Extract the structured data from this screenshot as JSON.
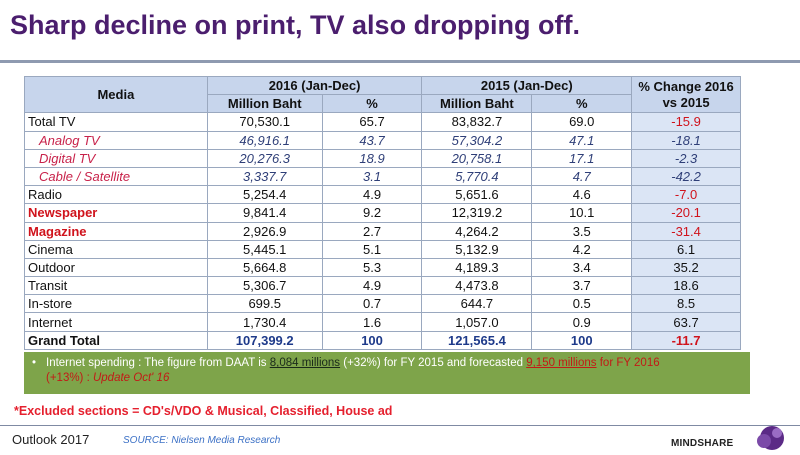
{
  "title": "Sharp decline on print, TV also dropping off.",
  "table": {
    "media_header": "Media",
    "group_2016": "2016 (Jan-Dec)",
    "group_2015": "2015 (Jan-Dec)",
    "change_header": "% Change 2016 vs 2015",
    "sub_million_2016": "Million Baht",
    "sub_pct_2016": "%",
    "sub_million_2015": "Million Baht",
    "sub_pct_2015": "%"
  },
  "chart_data": {
    "type": "table",
    "title": "Sharp decline on print, TV also dropping off.",
    "columns": [
      "Media",
      "2016 (Jan-Dec) Million Baht",
      "2016 (Jan-Dec) %",
      "2015 (Jan-Dec) Million Baht",
      "2015 (Jan-Dec) %",
      "% Change 2016 vs 2015"
    ],
    "rows": [
      {
        "media": "Total TV",
        "m2016": "70,530.1",
        "p2016": "65.7",
        "m2015": "83,832.7",
        "p2015": "69.0",
        "change": "-15.9",
        "style": "normal",
        "change_neg": true
      },
      {
        "media": "Analog TV",
        "m2016": "46,916.1",
        "p2016": "43.7",
        "m2015": "57,304.2",
        "p2015": "47.1",
        "change": "-18.1",
        "style": "sub",
        "change_neg": true
      },
      {
        "media": "Digital TV",
        "m2016": "20,276.3",
        "p2016": "18.9",
        "m2015": "20,758.1",
        "p2015": "17.1",
        "change": "-2.3",
        "style": "sub",
        "change_neg": true
      },
      {
        "media": "Cable / Satellite",
        "m2016": "3,337.7",
        "p2016": "3.1",
        "m2015": "5,770.4",
        "p2015": "4.7",
        "change": "-42.2",
        "style": "sub",
        "change_neg": true
      },
      {
        "media": "Radio",
        "m2016": "5,254.4",
        "p2016": "4.9",
        "m2015": "5,651.6",
        "p2015": "4.6",
        "change": "-7.0",
        "style": "normal",
        "change_neg": true
      },
      {
        "media": "Newspaper",
        "m2016": "9,841.4",
        "p2016": "9.2",
        "m2015": "12,319.2",
        "p2015": "10.1",
        "change": "-20.1",
        "style": "red",
        "change_neg": true
      },
      {
        "media": "Magazine",
        "m2016": "2,926.9",
        "p2016": "2.7",
        "m2015": "4,264.2",
        "p2015": "3.5",
        "change": "-31.4",
        "style": "red",
        "change_neg": true
      },
      {
        "media": "Cinema",
        "m2016": "5,445.1",
        "p2016": "5.1",
        "m2015": "5,132.9",
        "p2015": "4.2",
        "change": "6.1",
        "style": "normal",
        "change_neg": false
      },
      {
        "media": "Outdoor",
        "m2016": "5,664.8",
        "p2016": "5.3",
        "m2015": "4,189.3",
        "p2015": "3.4",
        "change": "35.2",
        "style": "normal",
        "change_neg": false
      },
      {
        "media": "Transit",
        "m2016": "5,306.7",
        "p2016": "4.9",
        "m2015": "4,473.8",
        "p2015": "3.7",
        "change": "18.6",
        "style": "normal",
        "change_neg": false
      },
      {
        "media": "In-store",
        "m2016": "699.5",
        "p2016": "0.7",
        "m2015": "644.7",
        "p2015": "0.5",
        "change": "8.5",
        "style": "normal",
        "change_neg": false
      },
      {
        "media": "Internet",
        "m2016": "1,730.4",
        "p2016": "1.6",
        "m2015": "1,057.0",
        "p2015": "0.9",
        "change": "63.7",
        "style": "normal",
        "change_neg": false
      },
      {
        "media": "Grand Total",
        "m2016": "107,399.2",
        "p2016": "100",
        "m2015": "121,565.4",
        "p2015": "100",
        "change": "-11.7",
        "style": "total",
        "change_neg": true
      }
    ]
  },
  "note": {
    "bullet": "•",
    "text_a": "Internet spending : The figure from DAAT is ",
    "link_a": "8,084 millions",
    "text_b": " (+32%) for FY 2015 and forecasted ",
    "link_b": "9,150 millions",
    "text_c": " for FY 2016",
    "text_d": "(+13%) : ",
    "text_e": "Update Oct' 16"
  },
  "excluded": "*Excluded sections = CD's/VDO & Musical, Classified, House ad",
  "footer": {
    "left": "Outlook 2017",
    "source": "SOURCE: Nielsen Media Research",
    "brand": "MINDSHARE"
  },
  "colors": {
    "title": "#4b1e6e",
    "header_bg": "#c7d5ec",
    "row_blue": "#dbe5f5",
    "negative": "#d0131c",
    "note_bg": "#7ea44a",
    "logo": "#5b2a86"
  }
}
